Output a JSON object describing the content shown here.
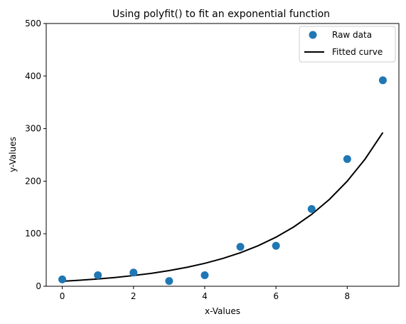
{
  "chart_data": {
    "type": "scatter",
    "title": "Using polyfit() to fit an exponential function",
    "xlabel": "x-Values",
    "ylabel": "y-Values",
    "xlim": [
      -0.45,
      9.45
    ],
    "ylim": [
      0,
      500
    ],
    "xticks": [
      0,
      2,
      4,
      6,
      8
    ],
    "yticks": [
      0,
      100,
      200,
      300,
      400,
      500
    ],
    "xtick_labels": [
      "0",
      "2",
      "4",
      "6",
      "8"
    ],
    "ytick_labels": [
      "0",
      "100",
      "200",
      "300",
      "400",
      "500"
    ],
    "grid": false,
    "legend_position": "top-right",
    "series": [
      {
        "name": "Raw data",
        "kind": "scatter",
        "color": "#1f77b4",
        "x": [
          0,
          1,
          2,
          3,
          4,
          5,
          6,
          7,
          8,
          9
        ],
        "y": [
          13,
          21,
          26,
          10,
          21,
          75,
          77,
          147,
          242,
          392
        ]
      },
      {
        "name": "Fitted curve",
        "kind": "line",
        "color": "#000000",
        "x": [
          0,
          0.5,
          1,
          1.5,
          2,
          2.5,
          3,
          3.5,
          4,
          4.5,
          5,
          5.5,
          6,
          6.5,
          7,
          7.5,
          8,
          8.5,
          9
        ],
        "y": [
          9.5,
          11.5,
          13.9,
          16.8,
          20.4,
          24.6,
          29.8,
          36.1,
          43.6,
          52.8,
          63.8,
          77.2,
          93.4,
          113.0,
          136.7,
          165.3,
          200.0,
          241.9,
          292.6
        ]
      }
    ]
  }
}
